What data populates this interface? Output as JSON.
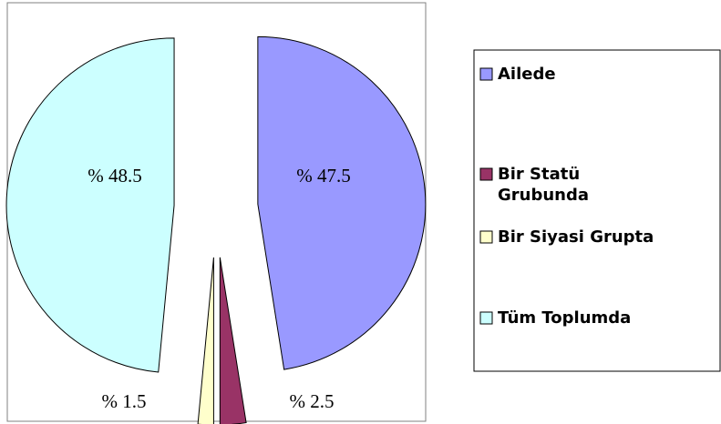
{
  "chart_data": {
    "type": "pie",
    "categories": [
      "Ailede",
      "Bir Statü Grubunda",
      "Bir Siyasi Grupta",
      "Tüm Toplumda"
    ],
    "values": [
      47.5,
      2.5,
      1.5,
      48.5
    ],
    "value_labels": [
      "% 47.5",
      "% 2.5",
      "% 1.5",
      "% 48.5"
    ],
    "colors": [
      "#9999ff",
      "#993366",
      "#ffffcc",
      "#ccffff"
    ],
    "legend": "right"
  }
}
